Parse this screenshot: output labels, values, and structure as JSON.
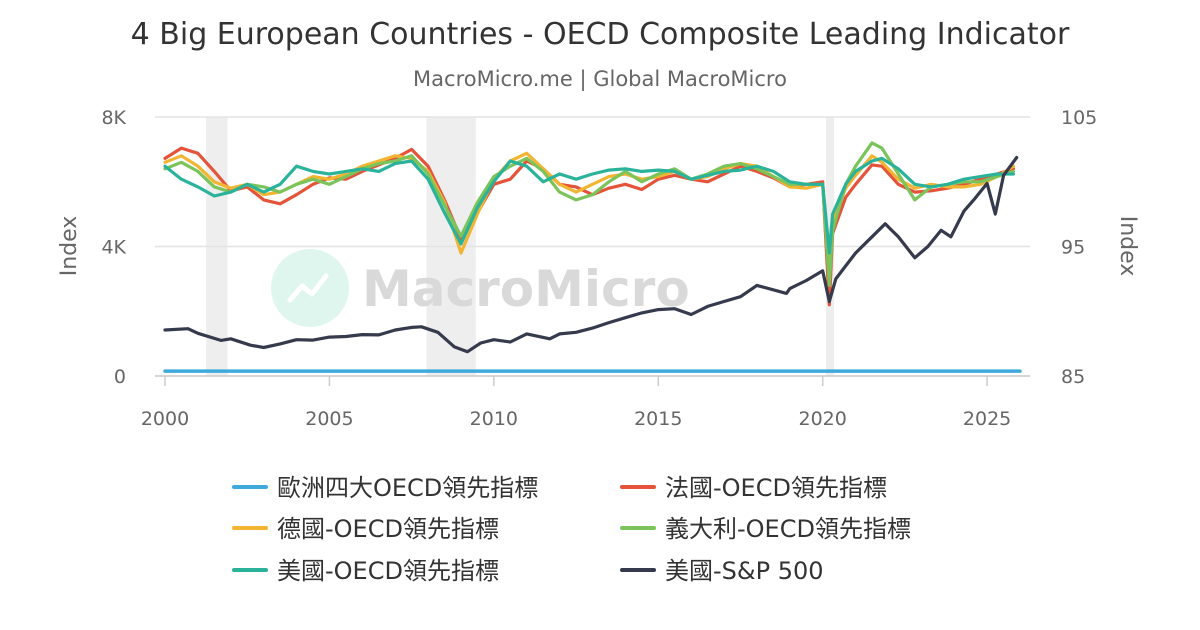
{
  "header": {
    "title": "4 Big European Countries - OECD Composite Leading Indicator",
    "subtitle": "MacroMicro.me | Global MacroMicro"
  },
  "watermark": {
    "text": "MacroMicro"
  },
  "chart_data": {
    "type": "line",
    "x_range": [
      2000,
      2026
    ],
    "x_ticks": [
      {
        "value": 2000,
        "label": "2000"
      },
      {
        "value": 2005,
        "label": "2005"
      },
      {
        "value": 2010,
        "label": "2010"
      },
      {
        "value": 2015,
        "label": "2015"
      },
      {
        "value": 2020,
        "label": "2020"
      },
      {
        "value": 2025,
        "label": "2025"
      }
    ],
    "y_left": {
      "label": "Index",
      "range": [
        0,
        8000
      ],
      "ticks": [
        {
          "value": 0,
          "label": "0"
        },
        {
          "value": 4000,
          "label": "4K"
        },
        {
          "value": 8000,
          "label": "8K"
        }
      ]
    },
    "y_right": {
      "label": "Index",
      "range": [
        85,
        105
      ],
      "ticks": [
        {
          "value": 85,
          "label": "85"
        },
        {
          "value": 95,
          "label": "95"
        },
        {
          "value": 105,
          "label": "105"
        }
      ]
    },
    "grid": true,
    "recession_bands": [
      [
        2001.25,
        2001.9
      ],
      [
        2007.95,
        2009.45
      ],
      [
        2020.1,
        2020.35
      ]
    ],
    "legend_position": "bottom",
    "series": [
      {
        "name": "歐洲四大OECD領先指標",
        "color": "#3fa9dc",
        "axis": "left",
        "points": [
          [
            2000,
            150
          ],
          [
            2026,
            150
          ]
        ]
      },
      {
        "name": "法國-OECD領先指標",
        "color": "#e4533a",
        "axis": "right",
        "points": [
          [
            2000,
            101.8
          ],
          [
            2000.5,
            102.6
          ],
          [
            2001,
            102.2
          ],
          [
            2001.5,
            100.8
          ],
          [
            2002,
            99.3
          ],
          [
            2002.5,
            99.6
          ],
          [
            2003,
            98.6
          ],
          [
            2003.5,
            98.3
          ],
          [
            2004,
            99.0
          ],
          [
            2004.5,
            99.8
          ],
          [
            2005,
            100.3
          ],
          [
            2005.5,
            100.2
          ],
          [
            2006,
            100.8
          ],
          [
            2006.5,
            101.3
          ],
          [
            2007,
            101.8
          ],
          [
            2007.5,
            102.5
          ],
          [
            2008,
            101.2
          ],
          [
            2008.5,
            98.6
          ],
          [
            2009,
            95.6
          ],
          [
            2009.5,
            97.6
          ],
          [
            2010,
            99.8
          ],
          [
            2010.5,
            100.2
          ],
          [
            2011,
            101.6
          ],
          [
            2011.5,
            101.0
          ],
          [
            2012,
            99.8
          ],
          [
            2012.5,
            99.6
          ],
          [
            2013,
            99.0
          ],
          [
            2013.5,
            99.5
          ],
          [
            2014,
            99.8
          ],
          [
            2014.5,
            99.4
          ],
          [
            2015,
            100.2
          ],
          [
            2015.5,
            100.5
          ],
          [
            2016,
            100.2
          ],
          [
            2016.5,
            100.0
          ],
          [
            2017,
            100.6
          ],
          [
            2017.5,
            101.2
          ],
          [
            2018,
            100.8
          ],
          [
            2018.5,
            100.3
          ],
          [
            2019,
            99.6
          ],
          [
            2019.5,
            99.8
          ],
          [
            2020,
            100.0
          ],
          [
            2020.2,
            90.5
          ],
          [
            2020.3,
            96.0
          ],
          [
            2020.7,
            98.8
          ],
          [
            2021,
            99.8
          ],
          [
            2021.5,
            101.3
          ],
          [
            2021.8,
            101.2
          ],
          [
            2022.3,
            99.8
          ],
          [
            2022.8,
            99.2
          ],
          [
            2023.3,
            99.3
          ],
          [
            2023.8,
            99.5
          ],
          [
            2024.3,
            99.8
          ],
          [
            2024.8,
            100.2
          ],
          [
            2025.3,
            100.6
          ],
          [
            2025.8,
            101.0
          ]
        ]
      },
      {
        "name": "德國-OECD領先指標",
        "color": "#f2b532",
        "axis": "right",
        "points": [
          [
            2000,
            101.5
          ],
          [
            2000.5,
            102.0
          ],
          [
            2001,
            101.2
          ],
          [
            2001.5,
            100.0
          ],
          [
            2002,
            99.5
          ],
          [
            2002.5,
            99.8
          ],
          [
            2003,
            99.0
          ],
          [
            2003.5,
            99.2
          ],
          [
            2004,
            99.8
          ],
          [
            2004.5,
            100.4
          ],
          [
            2005,
            100.2
          ],
          [
            2005.5,
            100.6
          ],
          [
            2006,
            101.2
          ],
          [
            2006.5,
            101.6
          ],
          [
            2007,
            102.0
          ],
          [
            2007.5,
            101.8
          ],
          [
            2008,
            100.8
          ],
          [
            2008.5,
            98.4
          ],
          [
            2009,
            94.5
          ],
          [
            2009.5,
            97.5
          ],
          [
            2010,
            100.2
          ],
          [
            2010.5,
            101.6
          ],
          [
            2011,
            102.2
          ],
          [
            2011.5,
            101.0
          ],
          [
            2012,
            99.8
          ],
          [
            2012.5,
            99.2
          ],
          [
            2013,
            99.8
          ],
          [
            2013.5,
            100.4
          ],
          [
            2014,
            100.6
          ],
          [
            2014.5,
            100.2
          ],
          [
            2015,
            100.4
          ],
          [
            2015.5,
            100.8
          ],
          [
            2016,
            100.2
          ],
          [
            2016.5,
            100.4
          ],
          [
            2017,
            101.0
          ],
          [
            2017.5,
            101.4
          ],
          [
            2018,
            101.2
          ],
          [
            2018.5,
            100.4
          ],
          [
            2019,
            99.6
          ],
          [
            2019.5,
            99.5
          ],
          [
            2020,
            99.8
          ],
          [
            2020.2,
            93.5
          ],
          [
            2020.3,
            97.0
          ],
          [
            2020.7,
            99.5
          ],
          [
            2021,
            100.5
          ],
          [
            2021.5,
            102.0
          ],
          [
            2021.8,
            101.5
          ],
          [
            2022.3,
            100.2
          ],
          [
            2022.8,
            99.5
          ],
          [
            2023.3,
            99.8
          ],
          [
            2023.8,
            99.6
          ],
          [
            2024.3,
            99.6
          ],
          [
            2024.8,
            99.8
          ],
          [
            2025.3,
            100.4
          ],
          [
            2025.8,
            101.2
          ]
        ]
      },
      {
        "name": "義大利-OECD領先指標",
        "color": "#7ac45b",
        "axis": "right",
        "points": [
          [
            2000,
            101.0
          ],
          [
            2000.5,
            101.5
          ],
          [
            2001,
            100.8
          ],
          [
            2001.5,
            99.6
          ],
          [
            2002,
            99.2
          ],
          [
            2002.5,
            99.8
          ],
          [
            2003,
            99.6
          ],
          [
            2003.5,
            99.2
          ],
          [
            2004,
            99.8
          ],
          [
            2004.5,
            100.2
          ],
          [
            2005,
            99.8
          ],
          [
            2005.5,
            100.4
          ],
          [
            2006,
            101.0
          ],
          [
            2006.5,
            101.4
          ],
          [
            2007,
            101.6
          ],
          [
            2007.5,
            102.0
          ],
          [
            2008,
            100.6
          ],
          [
            2008.5,
            98.2
          ],
          [
            2009,
            95.8
          ],
          [
            2009.5,
            98.4
          ],
          [
            2010,
            100.4
          ],
          [
            2010.5,
            101.2
          ],
          [
            2011,
            101.8
          ],
          [
            2011.5,
            100.8
          ],
          [
            2012,
            99.2
          ],
          [
            2012.5,
            98.6
          ],
          [
            2013,
            99.0
          ],
          [
            2013.5,
            100.0
          ],
          [
            2014,
            100.8
          ],
          [
            2014.5,
            100.0
          ],
          [
            2015,
            100.6
          ],
          [
            2015.5,
            101.0
          ],
          [
            2016,
            100.2
          ],
          [
            2016.5,
            100.6
          ],
          [
            2017,
            101.2
          ],
          [
            2017.5,
            101.4
          ],
          [
            2018,
            101.0
          ],
          [
            2018.5,
            100.4
          ],
          [
            2019,
            99.8
          ],
          [
            2019.5,
            99.8
          ],
          [
            2020,
            99.8
          ],
          [
            2020.2,
            92.0
          ],
          [
            2020.3,
            96.2
          ],
          [
            2020.7,
            99.8
          ],
          [
            2021,
            101.2
          ],
          [
            2021.5,
            103.0
          ],
          [
            2021.8,
            102.6
          ],
          [
            2022.3,
            100.6
          ],
          [
            2022.8,
            98.6
          ],
          [
            2023.3,
            99.6
          ],
          [
            2023.8,
            99.8
          ],
          [
            2024.3,
            100.0
          ],
          [
            2024.8,
            100.0
          ],
          [
            2025.3,
            100.4
          ],
          [
            2025.8,
            100.8
          ]
        ]
      },
      {
        "name": "美國-OECD領先指標",
        "color": "#2ab39a",
        "axis": "right",
        "points": [
          [
            2000,
            101.2
          ],
          [
            2000.5,
            100.2
          ],
          [
            2001,
            99.6
          ],
          [
            2001.5,
            98.9
          ],
          [
            2002,
            99.2
          ],
          [
            2002.5,
            99.8
          ],
          [
            2003,
            99.2
          ],
          [
            2003.5,
            99.8
          ],
          [
            2004,
            101.2
          ],
          [
            2004.5,
            100.8
          ],
          [
            2005,
            100.6
          ],
          [
            2005.5,
            100.8
          ],
          [
            2006,
            101.0
          ],
          [
            2006.5,
            100.8
          ],
          [
            2007,
            101.4
          ],
          [
            2007.5,
            101.6
          ],
          [
            2008,
            100.2
          ],
          [
            2008.5,
            97.6
          ],
          [
            2009,
            95.2
          ],
          [
            2009.5,
            98.0
          ],
          [
            2010,
            100.0
          ],
          [
            2010.5,
            101.6
          ],
          [
            2011,
            101.2
          ],
          [
            2011.5,
            100.0
          ],
          [
            2012,
            100.6
          ],
          [
            2012.5,
            100.2
          ],
          [
            2013,
            100.6
          ],
          [
            2013.5,
            100.9
          ],
          [
            2014,
            101.0
          ],
          [
            2014.5,
            100.8
          ],
          [
            2015,
            100.9
          ],
          [
            2015.5,
            100.8
          ],
          [
            2016,
            100.2
          ],
          [
            2016.5,
            100.5
          ],
          [
            2017,
            100.8
          ],
          [
            2017.5,
            100.9
          ],
          [
            2018,
            101.2
          ],
          [
            2018.5,
            100.8
          ],
          [
            2019,
            100.0
          ],
          [
            2019.5,
            99.8
          ],
          [
            2020,
            99.8
          ],
          [
            2020.2,
            94.5
          ],
          [
            2020.3,
            97.5
          ],
          [
            2020.7,
            99.8
          ],
          [
            2021,
            100.8
          ],
          [
            2021.5,
            101.6
          ],
          [
            2021.8,
            101.8
          ],
          [
            2022.3,
            101.0
          ],
          [
            2022.8,
            99.8
          ],
          [
            2023.3,
            99.6
          ],
          [
            2023.8,
            99.8
          ],
          [
            2024.3,
            100.2
          ],
          [
            2024.8,
            100.4
          ],
          [
            2025.3,
            100.6
          ],
          [
            2025.8,
            100.6
          ]
        ]
      },
      {
        "name": "美國-S&P 500",
        "color": "#353a4c",
        "axis": "left",
        "points": [
          [
            2000,
            1420
          ],
          [
            2000.7,
            1460
          ],
          [
            2001,
            1320
          ],
          [
            2001.7,
            1100
          ],
          [
            2002,
            1150
          ],
          [
            2002.6,
            950
          ],
          [
            2003,
            880
          ],
          [
            2003.5,
            990
          ],
          [
            2004,
            1120
          ],
          [
            2004.5,
            1110
          ],
          [
            2005,
            1200
          ],
          [
            2005.5,
            1220
          ],
          [
            2006,
            1280
          ],
          [
            2006.5,
            1270
          ],
          [
            2007,
            1420
          ],
          [
            2007.5,
            1500
          ],
          [
            2007.8,
            1520
          ],
          [
            2008.3,
            1350
          ],
          [
            2008.8,
            900
          ],
          [
            2009.2,
            750
          ],
          [
            2009.6,
            1020
          ],
          [
            2010,
            1120
          ],
          [
            2010.5,
            1050
          ],
          [
            2011,
            1300
          ],
          [
            2011.7,
            1150
          ],
          [
            2012,
            1300
          ],
          [
            2012.5,
            1350
          ],
          [
            2013,
            1480
          ],
          [
            2013.5,
            1650
          ],
          [
            2014,
            1800
          ],
          [
            2014.5,
            1950
          ],
          [
            2015,
            2050
          ],
          [
            2015.5,
            2080
          ],
          [
            2016,
            1900
          ],
          [
            2016.5,
            2150
          ],
          [
            2017,
            2300
          ],
          [
            2017.5,
            2450
          ],
          [
            2018,
            2800
          ],
          [
            2018.9,
            2550
          ],
          [
            2019,
            2700
          ],
          [
            2019.5,
            2950
          ],
          [
            2020,
            3250
          ],
          [
            2020.2,
            2300
          ],
          [
            2020.4,
            3000
          ],
          [
            2020.7,
            3400
          ],
          [
            2021,
            3800
          ],
          [
            2021.5,
            4300
          ],
          [
            2021.9,
            4700
          ],
          [
            2022.3,
            4300
          ],
          [
            2022.8,
            3650
          ],
          [
            2023.2,
            4000
          ],
          [
            2023.6,
            4500
          ],
          [
            2023.9,
            4300
          ],
          [
            2024.3,
            5100
          ],
          [
            2024.6,
            5450
          ],
          [
            2025,
            5950
          ],
          [
            2025.25,
            5000
          ],
          [
            2025.5,
            6200
          ],
          [
            2025.9,
            6750
          ]
        ]
      }
    ]
  }
}
